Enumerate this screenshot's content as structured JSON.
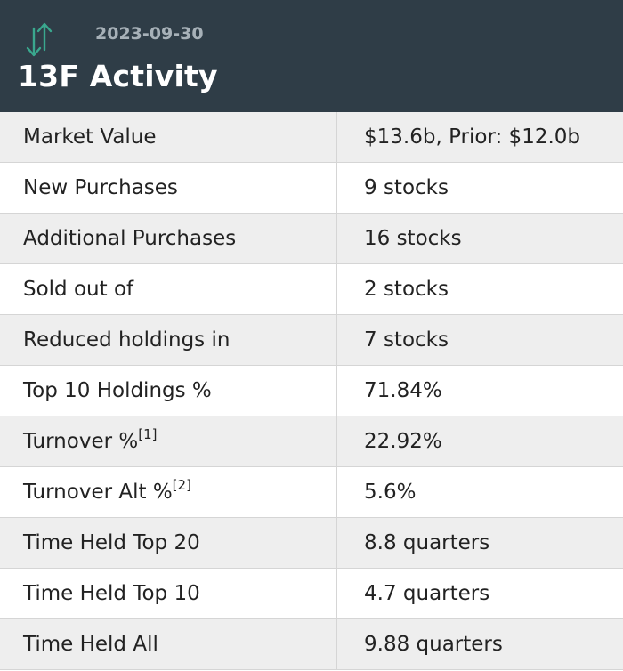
{
  "header": {
    "date": "2023-09-30",
    "title": "13F Activity",
    "icon": "up-down-arrows-icon",
    "background_color": "#2f3d47",
    "icon_color": "#3aa88e"
  },
  "rows": [
    {
      "label": "Market Value",
      "footnote": "",
      "value": "$13.6b, Prior: $12.0b"
    },
    {
      "label": "New Purchases",
      "footnote": "",
      "value": "9 stocks"
    },
    {
      "label": "Additional Purchases",
      "footnote": "",
      "value": "16 stocks"
    },
    {
      "label": "Sold out of",
      "footnote": "",
      "value": "2 stocks"
    },
    {
      "label": "Reduced holdings in",
      "footnote": "",
      "value": "7 stocks"
    },
    {
      "label": "Top 10 Holdings %",
      "footnote": "",
      "value": "71.84%"
    },
    {
      "label": "Turnover %",
      "footnote": "[1]",
      "value": "22.92%"
    },
    {
      "label": "Turnover Alt %",
      "footnote": "[2]",
      "value": "5.6%"
    },
    {
      "label": "Time Held Top 20",
      "footnote": "",
      "value": "8.8 quarters"
    },
    {
      "label": "Time Held Top 10",
      "footnote": "",
      "value": "4.7 quarters"
    },
    {
      "label": "Time Held All",
      "footnote": "",
      "value": "9.88 quarters"
    }
  ]
}
